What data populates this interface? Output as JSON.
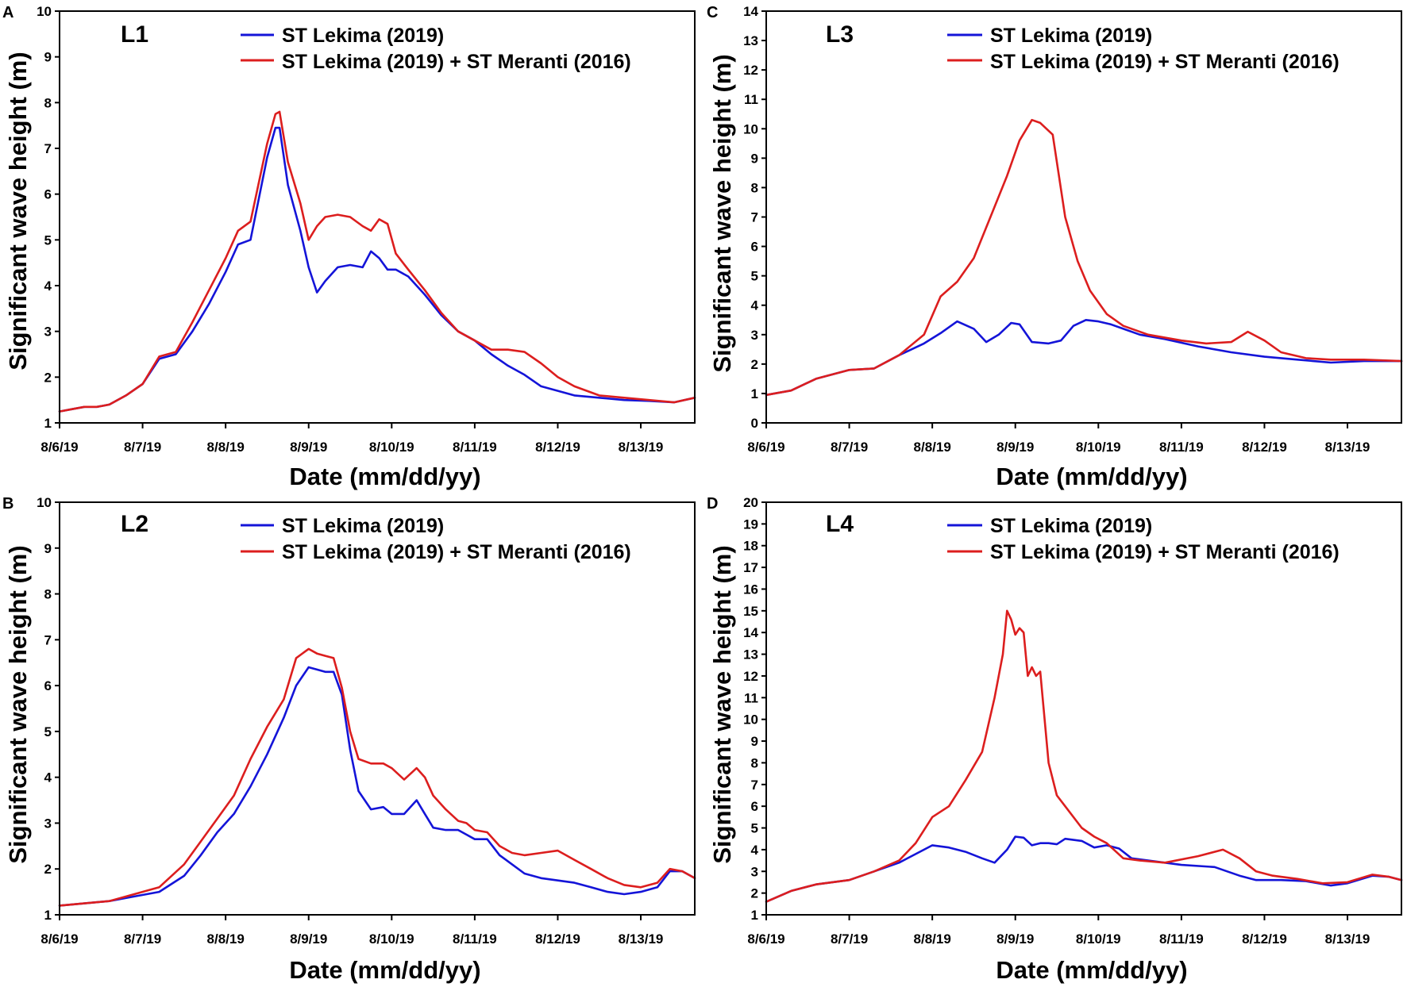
{
  "figure": {
    "x_axis_label": "Date (mm/dd/yy)",
    "y_axis_label": "Significant wave height (m)",
    "colors": {
      "lekima": "#1414d8",
      "combined": "#dc1e1e"
    }
  },
  "chart_data": [
    {
      "type": "line",
      "panel": "A",
      "station": "L1",
      "xlabel": "Date (mm/dd/yy)",
      "ylabel": "Significant wave height (m)",
      "categories": [
        "8/6/19",
        "8/7/19",
        "8/8/19",
        "8/9/19",
        "8/10/19",
        "8/11/19",
        "8/12/19",
        "8/13/19"
      ],
      "xlim": [
        0,
        7.65
      ],
      "ylim": [
        1,
        10
      ],
      "yticks": [
        1,
        2,
        3,
        4,
        5,
        6,
        7,
        8,
        9,
        10
      ],
      "series": [
        {
          "name": "ST Lekima (2019)",
          "color": "#1414d8",
          "x": [
            0,
            0.15,
            0.3,
            0.45,
            0.6,
            0.8,
            1.0,
            1.2,
            1.4,
            1.6,
            1.8,
            2.0,
            2.15,
            2.3,
            2.5,
            2.6,
            2.65,
            2.75,
            2.9,
            3.0,
            3.1,
            3.2,
            3.35,
            3.5,
            3.65,
            3.75,
            3.85,
            3.95,
            4.05,
            4.2,
            4.4,
            4.6,
            4.8,
            5.0,
            5.2,
            5.4,
            5.6,
            5.8,
            6.0,
            6.2,
            6.5,
            6.8,
            7.1,
            7.4,
            7.65
          ],
          "values": [
            1.25,
            1.3,
            1.35,
            1.35,
            1.4,
            1.6,
            1.85,
            2.4,
            2.5,
            3.0,
            3.6,
            4.3,
            4.9,
            5.0,
            6.8,
            7.45,
            7.45,
            6.2,
            5.2,
            4.4,
            3.85,
            4.1,
            4.4,
            4.45,
            4.4,
            4.75,
            4.6,
            4.35,
            4.35,
            4.2,
            3.8,
            3.35,
            3.0,
            2.8,
            2.5,
            2.25,
            2.05,
            1.8,
            1.7,
            1.6,
            1.55,
            1.5,
            1.48,
            1.45,
            1.55
          ]
        },
        {
          "name": "ST Lekima (2019) + ST  Meranti (2016)",
          "color": "#dc1e1e",
          "x": [
            0,
            0.15,
            0.3,
            0.45,
            0.6,
            0.8,
            1.0,
            1.2,
            1.4,
            1.6,
            1.8,
            2.0,
            2.15,
            2.3,
            2.5,
            2.6,
            2.65,
            2.75,
            2.9,
            3.0,
            3.1,
            3.2,
            3.35,
            3.5,
            3.65,
            3.75,
            3.85,
            3.95,
            4.05,
            4.2,
            4.4,
            4.6,
            4.8,
            5.0,
            5.2,
            5.4,
            5.6,
            5.8,
            6.0,
            6.2,
            6.5,
            6.8,
            7.1,
            7.4,
            7.65
          ],
          "values": [
            1.25,
            1.3,
            1.35,
            1.35,
            1.4,
            1.6,
            1.85,
            2.45,
            2.55,
            3.2,
            3.9,
            4.6,
            5.2,
            5.4,
            7.1,
            7.75,
            7.8,
            6.7,
            5.8,
            5.0,
            5.3,
            5.5,
            5.55,
            5.5,
            5.3,
            5.2,
            5.45,
            5.35,
            4.7,
            4.35,
            3.9,
            3.4,
            3.0,
            2.8,
            2.6,
            2.6,
            2.55,
            2.3,
            2.0,
            1.8,
            1.6,
            1.55,
            1.5,
            1.45,
            1.55
          ]
        }
      ]
    },
    {
      "type": "line",
      "panel": "B",
      "station": "L2",
      "xlabel": "Date (mm/dd/yy)",
      "ylabel": "Significant wave height (m)",
      "categories": [
        "8/6/19",
        "8/7/19",
        "8/8/19",
        "8/9/19",
        "8/10/19",
        "8/11/19",
        "8/12/19",
        "8/13/19"
      ],
      "xlim": [
        0,
        7.65
      ],
      "ylim": [
        1,
        10
      ],
      "yticks": [
        1,
        2,
        3,
        4,
        5,
        6,
        7,
        8,
        9,
        10
      ],
      "series": [
        {
          "name": "ST Lekima (2019)",
          "color": "#1414d8",
          "x": [
            0,
            0.3,
            0.6,
            0.9,
            1.2,
            1.5,
            1.7,
            1.9,
            2.1,
            2.3,
            2.5,
            2.7,
            2.85,
            3.0,
            3.1,
            3.2,
            3.3,
            3.4,
            3.5,
            3.6,
            3.75,
            3.9,
            4.0,
            4.15,
            4.3,
            4.4,
            4.5,
            4.65,
            4.8,
            4.9,
            5.0,
            5.15,
            5.3,
            5.45,
            5.6,
            5.8,
            6.0,
            6.2,
            6.4,
            6.6,
            6.8,
            7.0,
            7.2,
            7.35,
            7.5,
            7.65
          ],
          "values": [
            1.2,
            1.25,
            1.3,
            1.4,
            1.5,
            1.85,
            2.3,
            2.8,
            3.2,
            3.8,
            4.5,
            5.3,
            6.0,
            6.4,
            6.35,
            6.3,
            6.3,
            5.8,
            4.6,
            3.7,
            3.3,
            3.35,
            3.2,
            3.2,
            3.5,
            3.2,
            2.9,
            2.85,
            2.85,
            2.75,
            2.65,
            2.65,
            2.3,
            2.1,
            1.9,
            1.8,
            1.75,
            1.7,
            1.6,
            1.5,
            1.45,
            1.5,
            1.6,
            1.95,
            1.95,
            1.8
          ]
        },
        {
          "name": "ST Lekima (2019) + ST  Meranti (2016)",
          "color": "#dc1e1e",
          "x": [
            0,
            0.3,
            0.6,
            0.9,
            1.2,
            1.5,
            1.7,
            1.9,
            2.1,
            2.3,
            2.5,
            2.7,
            2.85,
            3.0,
            3.1,
            3.2,
            3.3,
            3.4,
            3.5,
            3.6,
            3.75,
            3.9,
            4.0,
            4.15,
            4.3,
            4.4,
            4.5,
            4.65,
            4.8,
            4.9,
            5.0,
            5.15,
            5.3,
            5.45,
            5.6,
            5.8,
            6.0,
            6.2,
            6.4,
            6.6,
            6.8,
            7.0,
            7.2,
            7.35,
            7.5,
            7.65
          ],
          "values": [
            1.2,
            1.25,
            1.3,
            1.45,
            1.6,
            2.1,
            2.6,
            3.1,
            3.6,
            4.4,
            5.1,
            5.7,
            6.6,
            6.8,
            6.7,
            6.65,
            6.6,
            5.95,
            5.0,
            4.4,
            4.3,
            4.3,
            4.2,
            3.95,
            4.2,
            4.0,
            3.6,
            3.3,
            3.05,
            3.0,
            2.85,
            2.8,
            2.5,
            2.35,
            2.3,
            2.35,
            2.4,
            2.2,
            2.0,
            1.8,
            1.65,
            1.6,
            1.7,
            2.0,
            1.95,
            1.8
          ]
        }
      ]
    },
    {
      "type": "line",
      "panel": "C",
      "station": "L3",
      "xlabel": "Date (mm/dd/yy)",
      "ylabel": "Significant wave height (m)",
      "categories": [
        "8/6/19",
        "8/7/19",
        "8/8/19",
        "8/9/19",
        "8/10/19",
        "8/11/19",
        "8/12/19",
        "8/13/19"
      ],
      "xlim": [
        0,
        7.65
      ],
      "ylim": [
        0,
        14
      ],
      "yticks": [
        0,
        1,
        2,
        3,
        4,
        5,
        6,
        7,
        8,
        9,
        10,
        11,
        12,
        13,
        14
      ],
      "series": [
        {
          "name": "ST Lekima (2019)",
          "color": "#1414d8",
          "x": [
            0,
            0.3,
            0.6,
            1.0,
            1.3,
            1.6,
            1.9,
            2.1,
            2.3,
            2.5,
            2.65,
            2.8,
            2.95,
            3.05,
            3.2,
            3.4,
            3.55,
            3.7,
            3.85,
            4.0,
            4.15,
            4.3,
            4.5,
            4.8,
            5.2,
            5.6,
            6.0,
            6.4,
            6.8,
            7.2,
            7.65
          ],
          "values": [
            0.95,
            1.1,
            1.5,
            1.8,
            1.85,
            2.3,
            2.7,
            3.05,
            3.45,
            3.2,
            2.75,
            3.0,
            3.4,
            3.35,
            2.75,
            2.7,
            2.8,
            3.3,
            3.5,
            3.45,
            3.35,
            3.2,
            3.0,
            2.85,
            2.6,
            2.4,
            2.25,
            2.15,
            2.05,
            2.1,
            2.1
          ]
        },
        {
          "name": "ST Lekima (2019) + ST  Meranti (2016)",
          "color": "#dc1e1e",
          "x": [
            0,
            0.3,
            0.6,
            1.0,
            1.3,
            1.6,
            1.9,
            2.1,
            2.3,
            2.5,
            2.7,
            2.9,
            3.05,
            3.2,
            3.3,
            3.45,
            3.6,
            3.75,
            3.9,
            4.1,
            4.3,
            4.6,
            5.0,
            5.3,
            5.6,
            5.8,
            6.0,
            6.2,
            6.5,
            6.8,
            7.2,
            7.65
          ],
          "values": [
            0.95,
            1.1,
            1.5,
            1.8,
            1.85,
            2.3,
            3.0,
            4.3,
            4.8,
            5.6,
            7.0,
            8.4,
            9.6,
            10.3,
            10.2,
            9.8,
            7.0,
            5.5,
            4.5,
            3.7,
            3.3,
            3.0,
            2.8,
            2.7,
            2.75,
            3.1,
            2.8,
            2.4,
            2.2,
            2.15,
            2.15,
            2.1
          ]
        }
      ]
    },
    {
      "type": "line",
      "panel": "D",
      "station": "L4",
      "xlabel": "Date (mm/dd/yy)",
      "ylabel": "Significant wave height (m)",
      "categories": [
        "8/6/19",
        "8/7/19",
        "8/8/19",
        "8/9/19",
        "8/10/19",
        "8/11/19",
        "8/12/19",
        "8/13/19"
      ],
      "xlim": [
        0,
        7.65
      ],
      "ylim": [
        1,
        20
      ],
      "yticks": [
        1,
        2,
        3,
        4,
        5,
        6,
        7,
        8,
        9,
        10,
        11,
        12,
        13,
        14,
        15,
        16,
        17,
        18,
        19,
        20
      ],
      "series": [
        {
          "name": "ST Lekima (2019)",
          "color": "#1414d8",
          "x": [
            0,
            0.3,
            0.6,
            1.0,
            1.3,
            1.6,
            1.8,
            2.0,
            2.2,
            2.4,
            2.6,
            2.75,
            2.9,
            3.0,
            3.1,
            3.2,
            3.3,
            3.4,
            3.5,
            3.6,
            3.8,
            3.95,
            4.1,
            4.25,
            4.4,
            4.6,
            5.0,
            5.4,
            5.7,
            5.9,
            6.2,
            6.5,
            6.8,
            7.0,
            7.3,
            7.5,
            7.65
          ],
          "values": [
            1.6,
            2.1,
            2.4,
            2.6,
            3.0,
            3.4,
            3.8,
            4.2,
            4.1,
            3.9,
            3.6,
            3.4,
            4.0,
            4.6,
            4.55,
            4.2,
            4.3,
            4.3,
            4.25,
            4.5,
            4.4,
            4.1,
            4.2,
            4.05,
            3.6,
            3.5,
            3.3,
            3.2,
            2.8,
            2.6,
            2.6,
            2.55,
            2.35,
            2.45,
            2.8,
            2.75,
            2.6
          ]
        },
        {
          "name": "ST Lekima (2019) + ST  Meranti (2016)",
          "color": "#dc1e1e",
          "x": [
            0,
            0.3,
            0.6,
            1.0,
            1.3,
            1.6,
            1.8,
            2.0,
            2.2,
            2.4,
            2.6,
            2.75,
            2.85,
            2.9,
            2.95,
            3.0,
            3.05,
            3.1,
            3.15,
            3.2,
            3.25,
            3.3,
            3.4,
            3.5,
            3.6,
            3.8,
            3.95,
            4.1,
            4.3,
            4.5,
            4.8,
            5.2,
            5.5,
            5.7,
            5.9,
            6.1,
            6.4,
            6.7,
            7.0,
            7.3,
            7.5,
            7.65
          ],
          "values": [
            1.6,
            2.1,
            2.4,
            2.6,
            3.0,
            3.5,
            4.3,
            5.5,
            6.0,
            7.2,
            8.5,
            11.0,
            13.0,
            15.0,
            14.6,
            13.9,
            14.2,
            14.0,
            12.0,
            12.4,
            12.0,
            12.2,
            8.0,
            6.5,
            6.0,
            5.0,
            4.6,
            4.3,
            3.6,
            3.5,
            3.4,
            3.7,
            4.0,
            3.6,
            3.0,
            2.8,
            2.65,
            2.45,
            2.5,
            2.85,
            2.75,
            2.6
          ]
        }
      ]
    }
  ],
  "panels": [
    {
      "letter": "A",
      "station": "L1",
      "legend": [
        "ST Lekima (2019)",
        "ST Lekima (2019) + ST  Meranti (2016)"
      ]
    },
    {
      "letter": "B",
      "station": "L2",
      "legend": [
        "ST Lekima (2019)",
        "ST Lekima (2019) + ST  Meranti (2016)"
      ]
    },
    {
      "letter": "C",
      "station": "L3",
      "legend": [
        "ST Lekima (2019)",
        "ST Lekima (2019) + ST  Meranti (2016)"
      ]
    },
    {
      "letter": "D",
      "station": "L4",
      "legend": [
        "ST Lekima (2019)",
        "ST Lekima (2019) + ST  Meranti (2016)"
      ]
    }
  ]
}
